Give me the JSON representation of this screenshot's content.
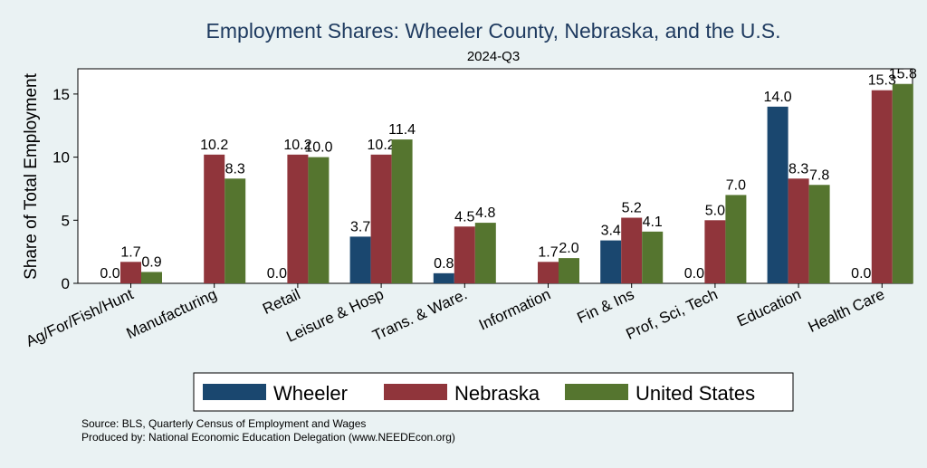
{
  "chart_data": {
    "type": "bar",
    "title": "Employment Shares: Wheeler County, Nebraska, and the U.S.",
    "subtitle": "2024-Q3",
    "xlabel": "",
    "ylabel": "Share of Total Employment",
    "ylim": [
      0,
      17
    ],
    "yticks": [
      0,
      5,
      10,
      15
    ],
    "grid": false,
    "legend_position": "bottom",
    "categories": [
      "Ag/For/Fish/Hunt",
      "Manufacturing",
      "Retail",
      "Leisure & Hosp",
      "Trans. & Ware.",
      "Information",
      "Fin & Ins",
      "Prof, Sci, Tech",
      "Education",
      "Health Care"
    ],
    "series": [
      {
        "name": "Wheeler",
        "color": "#1a476f",
        "values": [
          0.0,
          null,
          0.0,
          3.7,
          0.8,
          null,
          3.4,
          0.0,
          14.0,
          0.0
        ]
      },
      {
        "name": "Nebraska",
        "color": "#90353b",
        "values": [
          1.7,
          10.2,
          10.2,
          10.2,
          4.5,
          1.7,
          5.2,
          5.0,
          8.3,
          15.3
        ]
      },
      {
        "name": "United States",
        "color": "#55752f",
        "values": [
          0.9,
          8.3,
          10.0,
          11.4,
          4.8,
          2.0,
          4.1,
          7.0,
          7.8,
          15.8
        ]
      }
    ],
    "data_labels": [
      [
        "0.0",
        "",
        "0.0",
        "3.7",
        "0.8",
        "",
        "3.4",
        "0.0",
        "14.0",
        "0.0"
      ],
      [
        "1.7",
        "10.2",
        "10.2",
        "10.2",
        "4.5",
        "1.7",
        "5.2",
        "5.0",
        "8.3",
        "15.3"
      ],
      [
        "0.9",
        "8.3",
        "10.0",
        "11.4",
        "4.8",
        "2.0",
        "4.1",
        "7.0",
        "7.8",
        "15.8"
      ]
    ]
  },
  "notes": {
    "source": "Source: BLS, Quarterly Census of Employment and Wages",
    "produced_by": "Produced by: National Economic Education Delegation (www.NEEDEcon.org)"
  }
}
